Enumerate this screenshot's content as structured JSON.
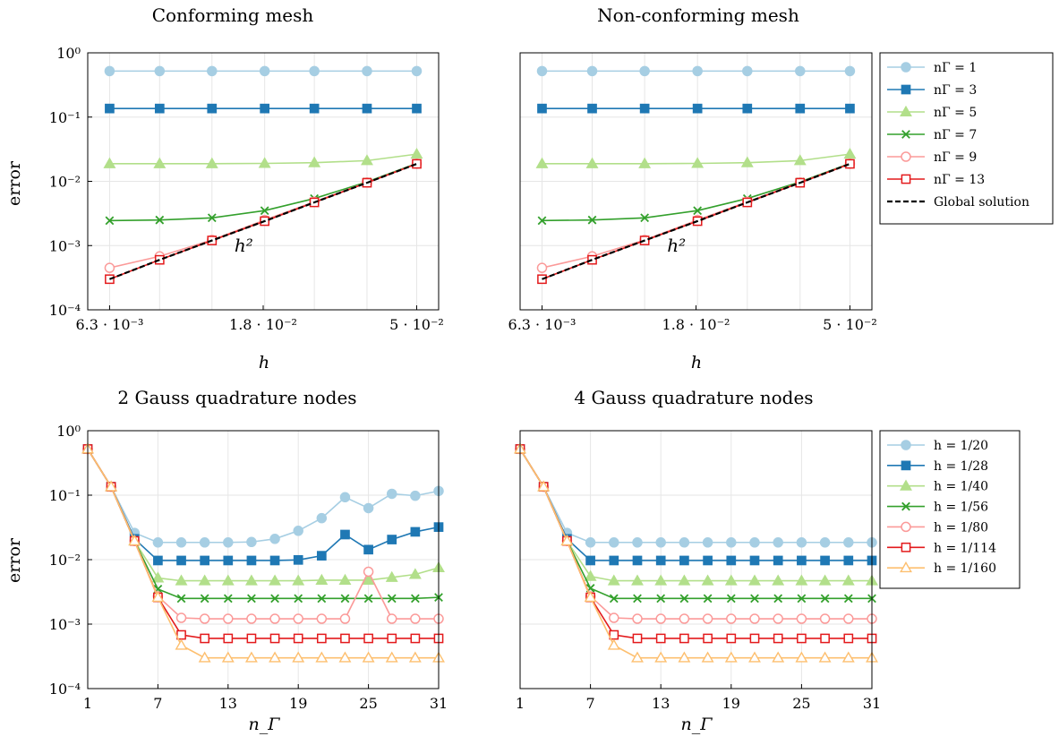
{
  "chart_data": [
    {
      "type": "line",
      "title": "Conforming mesh",
      "xlabel": "h",
      "ylabel": "error",
      "xscale": "log",
      "yscale": "log",
      "xticks": [
        {
          "v": 0.00625,
          "label": "6.3 · 10⁻³"
        },
        {
          "v": 0.01768,
          "label": "1.8 · 10⁻²"
        },
        {
          "v": 0.05,
          "label": "5 · 10⁻²"
        }
      ],
      "yticks": [
        {
          "v": 1,
          "label": "10⁰"
        },
        {
          "v": 0.1,
          "label": "10⁻¹"
        },
        {
          "v": 0.01,
          "label": "10⁻²"
        },
        {
          "v": 0.001,
          "label": "10⁻³"
        },
        {
          "v": 0.0001,
          "label": "10⁻⁴"
        }
      ],
      "ylim": [
        0.0001,
        1
      ],
      "xlim": [
        0.00539,
        0.058
      ],
      "x": [
        0.00625,
        0.00877,
        0.0125,
        0.01786,
        0.025,
        0.03571,
        0.05
      ],
      "annotation": {
        "text": "h²",
        "x": 0.0155,
        "y": 0.0008
      },
      "series": [
        {
          "name": "n_Γ = 1",
          "values": [
            0.52,
            0.52,
            0.52,
            0.52,
            0.52,
            0.52,
            0.52
          ]
        },
        {
          "name": "n_Γ = 3",
          "values": [
            0.136,
            0.136,
            0.136,
            0.136,
            0.136,
            0.136,
            0.136
          ]
        },
        {
          "name": "n_Γ = 5",
          "values": [
            0.0188,
            0.0188,
            0.0188,
            0.019,
            0.0195,
            0.021,
            0.0265
          ]
        },
        {
          "name": "n_Γ = 7",
          "values": [
            0.00245,
            0.0025,
            0.0027,
            0.0035,
            0.0054,
            0.0098,
            0.019
          ]
        },
        {
          "name": "n_Γ = 9",
          "values": [
            0.00045,
            0.00068,
            0.00122,
            0.0025,
            0.0048,
            0.0096,
            0.0188
          ]
        },
        {
          "name": "n_Γ = 13",
          "values": [
            0.0003,
            0.0006,
            0.0012,
            0.0024,
            0.0047,
            0.0095,
            0.0187
          ]
        },
        {
          "name": "Global solution",
          "values": [
            0.0003,
            0.0006,
            0.0012,
            0.0024,
            0.0047,
            0.0095,
            0.0187
          ]
        }
      ]
    },
    {
      "type": "line",
      "title": "Non-conforming mesh",
      "xlabel": "h",
      "ylabel": "",
      "xscale": "log",
      "yscale": "log",
      "xticks": [
        {
          "v": 0.00625,
          "label": "6.3 · 10⁻³"
        },
        {
          "v": 0.01768,
          "label": "1.8 · 10⁻²"
        },
        {
          "v": 0.05,
          "label": "5 · 10⁻²"
        }
      ],
      "yticks": [],
      "ylim": [
        0.0001,
        1
      ],
      "xlim": [
        0.00539,
        0.058
      ],
      "x": [
        0.00625,
        0.00877,
        0.0125,
        0.01786,
        0.025,
        0.03571,
        0.05
      ],
      "annotation": {
        "text": "h²",
        "x": 0.0155,
        "y": 0.0008
      },
      "series": [
        {
          "name": "n_Γ = 1",
          "values": [
            0.52,
            0.52,
            0.52,
            0.52,
            0.52,
            0.52,
            0.52
          ]
        },
        {
          "name": "n_Γ = 3",
          "values": [
            0.136,
            0.136,
            0.136,
            0.136,
            0.136,
            0.136,
            0.136
          ]
        },
        {
          "name": "n_Γ = 5",
          "values": [
            0.0188,
            0.0188,
            0.0188,
            0.019,
            0.0195,
            0.021,
            0.0265
          ]
        },
        {
          "name": "n_Γ = 7",
          "values": [
            0.00245,
            0.0025,
            0.0027,
            0.0035,
            0.0054,
            0.0098,
            0.019
          ]
        },
        {
          "name": "n_Γ = 9",
          "values": [
            0.00045,
            0.00068,
            0.00122,
            0.0025,
            0.0048,
            0.0096,
            0.0188
          ]
        },
        {
          "name": "n_Γ = 13",
          "values": [
            0.0003,
            0.0006,
            0.0012,
            0.0024,
            0.0047,
            0.0095,
            0.0187
          ]
        },
        {
          "name": "Global solution",
          "values": [
            0.0003,
            0.0006,
            0.0012,
            0.0024,
            0.0047,
            0.0095,
            0.0187
          ]
        }
      ]
    },
    {
      "type": "line",
      "title": "2 Gauss quadrature nodes",
      "xlabel": "n_Γ",
      "ylabel": "error",
      "xscale": "linear",
      "yscale": "log",
      "xticks": [
        {
          "v": 1,
          "label": "1"
        },
        {
          "v": 7,
          "label": "7"
        },
        {
          "v": 13,
          "label": "13"
        },
        {
          "v": 19,
          "label": "19"
        },
        {
          "v": 25,
          "label": "25"
        },
        {
          "v": 31,
          "label": "31"
        }
      ],
      "yticks": [
        {
          "v": 1,
          "label": "10⁰"
        },
        {
          "v": 0.1,
          "label": "10⁻¹"
        },
        {
          "v": 0.01,
          "label": "10⁻²"
        },
        {
          "v": 0.001,
          "label": "10⁻³"
        },
        {
          "v": 0.0001,
          "label": "10⁻⁴"
        }
      ],
      "ylim": [
        0.0001,
        1
      ],
      "xlim": [
        1,
        31
      ],
      "x": [
        1,
        3,
        5,
        7,
        9,
        11,
        13,
        15,
        17,
        19,
        21,
        23,
        25,
        27,
        29,
        31
      ],
      "series": [
        {
          "name": "h = 1/20",
          "values": [
            0.52,
            0.135,
            0.026,
            0.0185,
            0.0185,
            0.0185,
            0.0185,
            0.0188,
            0.021,
            0.028,
            0.044,
            0.093,
            0.063,
            0.105,
            0.098,
            0.116
          ]
        },
        {
          "name": "h = 1/28",
          "values": [
            0.52,
            0.135,
            0.021,
            0.0097,
            0.0097,
            0.0097,
            0.0097,
            0.0097,
            0.0097,
            0.0099,
            0.0115,
            0.0245,
            0.0143,
            0.0205,
            0.027,
            0.032
          ]
        },
        {
          "name": "h = 1/40",
          "values": [
            0.52,
            0.135,
            0.0195,
            0.0052,
            0.0047,
            0.0047,
            0.0047,
            0.0047,
            0.0047,
            0.0047,
            0.0048,
            0.0048,
            0.0048,
            0.0053,
            0.0059,
            0.0075
          ]
        },
        {
          "name": "h = 1/56",
          "values": [
            0.52,
            0.135,
            0.0195,
            0.0035,
            0.0025,
            0.0025,
            0.0025,
            0.0025,
            0.0025,
            0.0025,
            0.0025,
            0.0025,
            0.0025,
            0.0025,
            0.0025,
            0.0026
          ]
        },
        {
          "name": "h = 1/80",
          "values": [
            0.52,
            0.135,
            0.0195,
            0.0027,
            0.00125,
            0.00121,
            0.00121,
            0.00121,
            0.00121,
            0.00121,
            0.00121,
            0.00121,
            0.0065,
            0.00121,
            0.00121,
            0.00121
          ]
        },
        {
          "name": "h = 1/114",
          "values": [
            0.52,
            0.135,
            0.0195,
            0.0026,
            0.00068,
            0.0006,
            0.0006,
            0.0006,
            0.0006,
            0.0006,
            0.0006,
            0.0006,
            0.0006,
            0.0006,
            0.0006,
            0.0006
          ]
        },
        {
          "name": "h = 1/160",
          "values": [
            0.52,
            0.135,
            0.0195,
            0.0026,
            0.00047,
            0.0003,
            0.0003,
            0.0003,
            0.0003,
            0.0003,
            0.0003,
            0.0003,
            0.0003,
            0.0003,
            0.0003,
            0.0003
          ]
        }
      ]
    },
    {
      "type": "line",
      "title": "4 Gauss quadrature nodes",
      "xlabel": "n_Γ",
      "ylabel": "",
      "xscale": "linear",
      "yscale": "log",
      "xticks": [
        {
          "v": 1,
          "label": "1"
        },
        {
          "v": 7,
          "label": "7"
        },
        {
          "v": 13,
          "label": "13"
        },
        {
          "v": 19,
          "label": "19"
        },
        {
          "v": 25,
          "label": "25"
        },
        {
          "v": 31,
          "label": "31"
        }
      ],
      "yticks": [],
      "ylim": [
        0.0001,
        1
      ],
      "xlim": [
        1,
        31
      ],
      "x": [
        1,
        3,
        5,
        7,
        9,
        11,
        13,
        15,
        17,
        19,
        21,
        23,
        25,
        27,
        29,
        31
      ],
      "series": [
        {
          "name": "h = 1/20",
          "values": [
            0.52,
            0.135,
            0.026,
            0.0185,
            0.0185,
            0.0185,
            0.0185,
            0.0185,
            0.0185,
            0.0185,
            0.0185,
            0.0185,
            0.0185,
            0.0185,
            0.0185,
            0.0185
          ]
        },
        {
          "name": "h = 1/28",
          "values": [
            0.52,
            0.135,
            0.021,
            0.0097,
            0.0097,
            0.0097,
            0.0097,
            0.0097,
            0.0097,
            0.0097,
            0.0097,
            0.0097,
            0.0097,
            0.0097,
            0.0097,
            0.0097
          ]
        },
        {
          "name": "h = 1/40",
          "values": [
            0.52,
            0.135,
            0.0195,
            0.0055,
            0.0047,
            0.0047,
            0.0047,
            0.0047,
            0.0047,
            0.0047,
            0.0047,
            0.0047,
            0.0047,
            0.0047,
            0.0047,
            0.0047
          ]
        },
        {
          "name": "h = 1/56",
          "values": [
            0.52,
            0.135,
            0.0195,
            0.0036,
            0.0025,
            0.0025,
            0.0025,
            0.0025,
            0.0025,
            0.0025,
            0.0025,
            0.0025,
            0.0025,
            0.0025,
            0.0025,
            0.0025
          ]
        },
        {
          "name": "h = 1/80",
          "values": [
            0.52,
            0.135,
            0.0195,
            0.0027,
            0.00125,
            0.00121,
            0.00121,
            0.00121,
            0.00121,
            0.00121,
            0.00121,
            0.00121,
            0.00121,
            0.00121,
            0.00121,
            0.00121
          ]
        },
        {
          "name": "h = 1/114",
          "values": [
            0.52,
            0.135,
            0.0195,
            0.0026,
            0.00068,
            0.0006,
            0.0006,
            0.0006,
            0.0006,
            0.0006,
            0.0006,
            0.0006,
            0.0006,
            0.0006,
            0.0006,
            0.0006
          ]
        },
        {
          "name": "h = 1/160",
          "values": [
            0.52,
            0.135,
            0.0195,
            0.0026,
            0.00047,
            0.0003,
            0.0003,
            0.0003,
            0.0003,
            0.0003,
            0.0003,
            0.0003,
            0.0003,
            0.0003,
            0.0003,
            0.0003
          ]
        }
      ]
    }
  ],
  "styles": [
    {
      "color": "#a6cee3",
      "marker": "circle",
      "fill": true
    },
    {
      "color": "#1f78b4",
      "marker": "square",
      "fill": true
    },
    {
      "color": "#b2df8a",
      "marker": "triangle",
      "fill": true
    },
    {
      "color": "#33a02c",
      "marker": "cross",
      "fill": false
    },
    {
      "color": "#fb9a99",
      "marker": "circle",
      "fill": false
    },
    {
      "color": "#e31a1c",
      "marker": "square",
      "fill": false
    },
    {
      "color": "#fdbf6f",
      "marker": "triangle",
      "fill": false
    }
  ],
  "global_style": {
    "color": "#000000",
    "dash": true
  },
  "legends": [
    {
      "items": [
        "n_Γ = 1",
        "n_Γ = 3",
        "n_Γ = 5",
        "n_Γ = 7",
        "n_Γ = 9",
        "n_Γ = 13",
        "Global solution"
      ]
    },
    {
      "items": [
        "h = 1/20",
        "h = 1/28",
        "h = 1/40",
        "h = 1/56",
        "h = 1/80",
        "h = 1/114",
        "h = 1/160"
      ]
    }
  ]
}
